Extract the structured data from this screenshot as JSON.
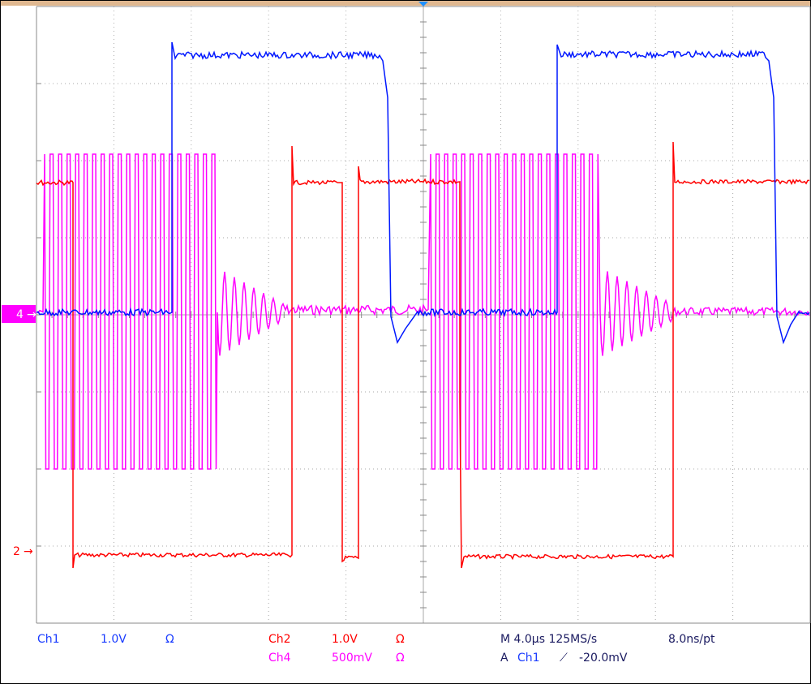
{
  "channels": [
    {
      "label": "Ch1",
      "scale": "1.0V",
      "coupling": "Ω"
    },
    {
      "label": "Ch2",
      "scale": "1.0V",
      "coupling": "Ω"
    },
    {
      "label": "Ch4",
      "scale": "500mV",
      "coupling": "Ω"
    }
  ],
  "timebase": {
    "horizontal": "M 4.0µs 125MS/s",
    "resolution": "8.0ns/pt"
  },
  "trigger": {
    "mode": "A",
    "source": "Ch1",
    "slope": "⟋",
    "level": "-20.0mV"
  },
  "markers": [
    "4",
    "2"
  ]
}
